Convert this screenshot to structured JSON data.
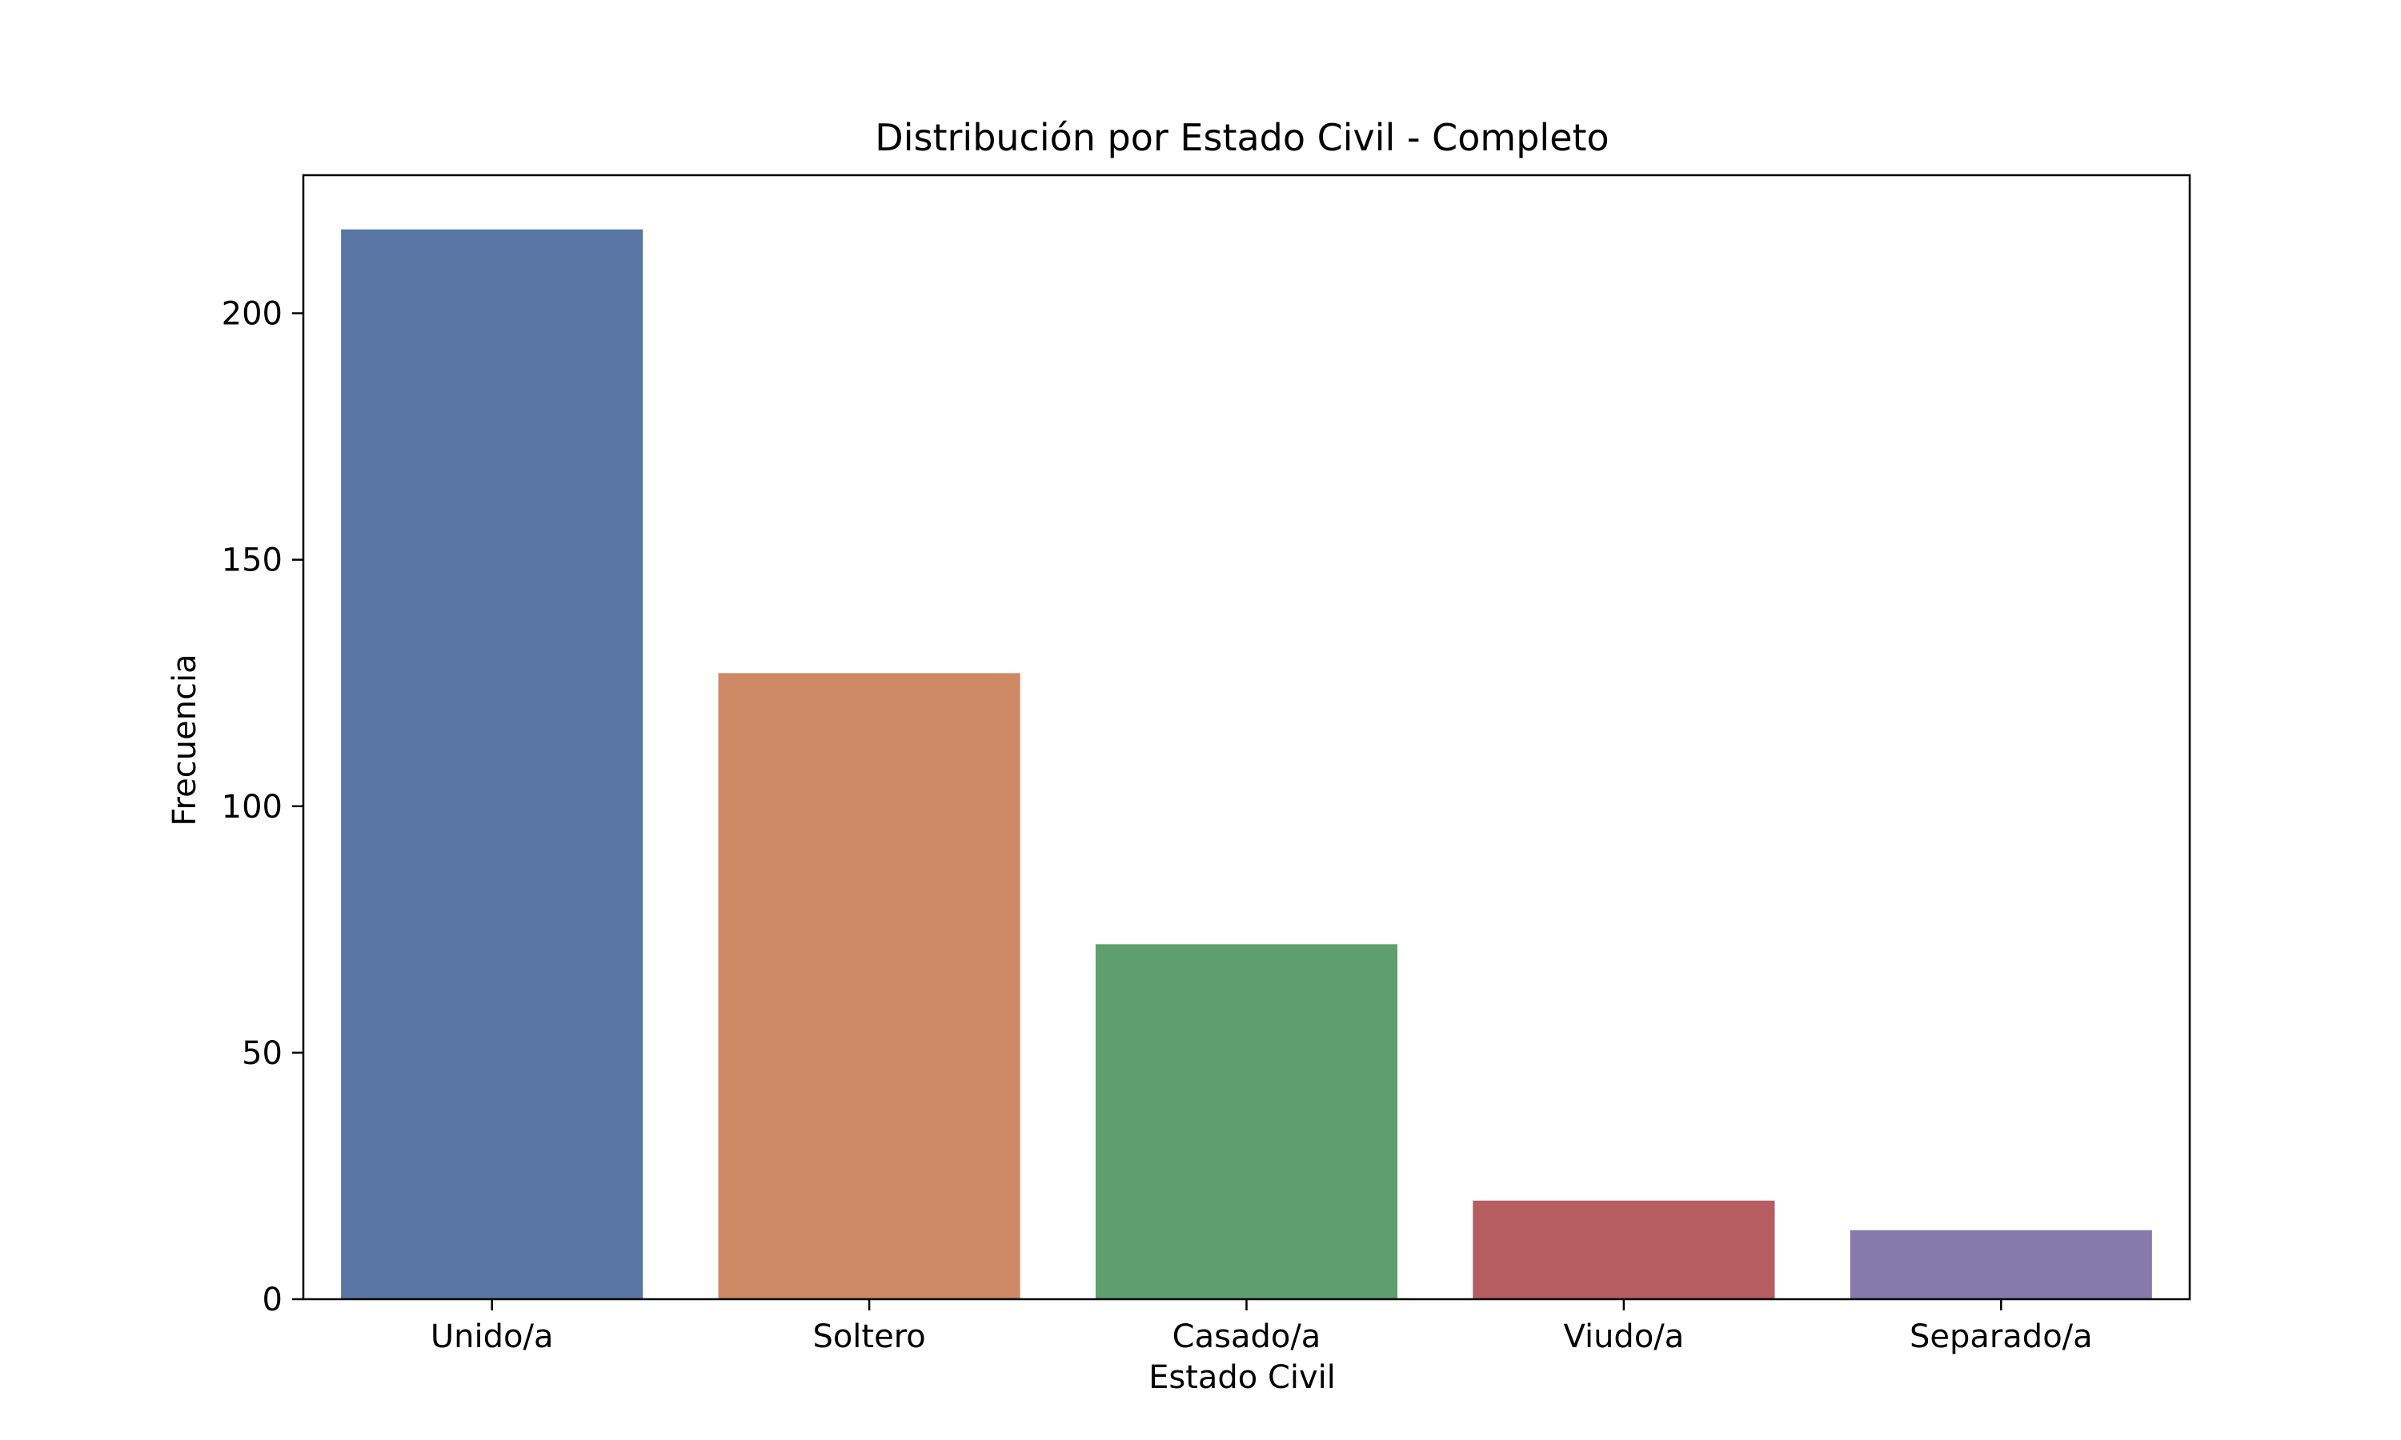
{
  "chart_data": {
    "type": "bar",
    "title": "Distribución por Estado Civil - Completo",
    "xlabel": "Estado Civil",
    "ylabel": "Frecuencia",
    "categories": [
      "Unido/a",
      "Soltero",
      "Casado/a",
      "Viudo/a",
      "Separado/a"
    ],
    "values": [
      217,
      127,
      72,
      20,
      14
    ],
    "colors": [
      "#5875a4",
      "#cc8963",
      "#5f9e6e",
      "#b55d60",
      "#857aab"
    ],
    "ylim": [
      0,
      228
    ],
    "yticks": [
      0,
      50,
      100,
      150,
      200
    ],
    "grid": false,
    "legend": "none"
  }
}
